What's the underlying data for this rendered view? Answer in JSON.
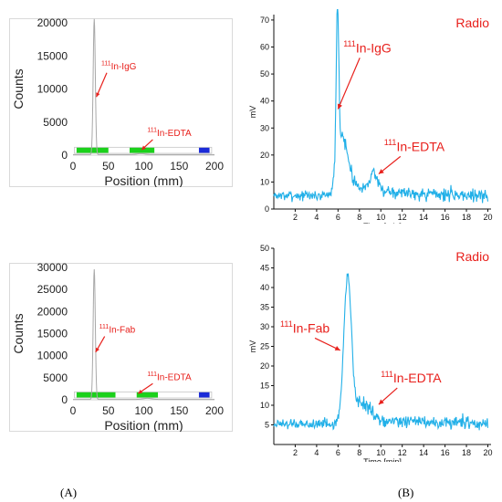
{
  "colors": {
    "red": "#e8201c",
    "hplc_trace": "#22b0e8",
    "tlc_trace": "#a8a8a8",
    "strip_green": "#1bd11b",
    "strip_blue": "#1b2bd8"
  },
  "panel_labels": {
    "a": "(A)",
    "b": "(B)"
  },
  "chart_data": [
    {
      "id": "A-top",
      "type": "line",
      "xlabel": "Position (mm)",
      "ylabel": "Counts",
      "xlim": [
        0,
        200
      ],
      "ylim": [
        0,
        20000
      ],
      "xticks": [
        "0",
        "50",
        "100",
        "150",
        "200"
      ],
      "yticks": [
        "0",
        "5000",
        "10000",
        "15000",
        "20000"
      ],
      "peaks": [
        {
          "center": 30,
          "height": 20500,
          "width": 1.5
        },
        {
          "center": 96,
          "height": 150,
          "width": 6
        }
      ],
      "baseline": 80,
      "strip_segments": [
        {
          "color": "green",
          "start": 5,
          "end": 50
        },
        {
          "color": "green",
          "start": 80,
          "end": 115
        },
        {
          "color": "blue",
          "start": 178,
          "end": 193
        }
      ],
      "annotations": [
        {
          "sup": "111",
          "text": "In-IgG",
          "label_x": 40,
          "label_y": 13000,
          "arrow_to_x": 33,
          "arrow_to_y": 8800
        },
        {
          "sup": "111",
          "text": "In-EDTA",
          "label_x": 105,
          "label_y": 2900,
          "arrow_to_x": 97,
          "arrow_to_y": 800
        }
      ]
    },
    {
      "id": "A-bottom",
      "type": "line",
      "xlabel": "Position (mm)",
      "ylabel": "Counts",
      "xlim": [
        0,
        200
      ],
      "ylim": [
        0,
        30000
      ],
      "xticks": [
        "0",
        "50",
        "100",
        "150",
        "200"
      ],
      "yticks": [
        "0",
        "5000",
        "10000",
        "15000",
        "20000",
        "25000",
        "30000"
      ],
      "peaks": [
        {
          "center": 30,
          "height": 29500,
          "width": 1.5
        },
        {
          "center": 105,
          "height": 250,
          "width": 6
        }
      ],
      "baseline": 80,
      "strip_segments": [
        {
          "color": "green",
          "start": 5,
          "end": 60
        },
        {
          "color": "green",
          "start": 90,
          "end": 120
        },
        {
          "color": "blue",
          "start": 178,
          "end": 193
        }
      ],
      "annotations": [
        {
          "sup": "111",
          "text": "In-Fab",
          "label_x": 37,
          "label_y": 15200,
          "arrow_to_x": 32,
          "arrow_to_y": 10800
        },
        {
          "sup": "111",
          "text": "In-EDTA",
          "label_x": 105,
          "label_y": 4500,
          "arrow_to_x": 92,
          "arrow_to_y": 1400
        }
      ]
    },
    {
      "id": "B-top",
      "type": "line",
      "title": "Radio",
      "xlabel": "Time [min]",
      "ylabel": "mV",
      "xlim": [
        0,
        20.3
      ],
      "ylim": [
        0,
        72
      ],
      "xticks": [
        "2",
        "4",
        "6",
        "8",
        "10",
        "12",
        "14",
        "16",
        "18",
        "20"
      ],
      "yticks": [
        "0",
        "10",
        "20",
        "30",
        "40",
        "50",
        "60",
        "70"
      ],
      "trace": {
        "start": 0,
        "end": 20,
        "step": 0.05,
        "baseline": 5,
        "noise": 1.5,
        "seed": 7,
        "rise": {
          "at": 5.8,
          "to": 12,
          "width": 0.15
        },
        "tail": {
          "level": 7,
          "decay": 3.5
        },
        "peaks": [
          {
            "center": 5.95,
            "height": 55,
            "width": 0.12
          },
          {
            "center": 6.4,
            "height": 16,
            "width": 0.5
          },
          {
            "center": 9.3,
            "height": 7,
            "width": 0.25
          }
        ]
      },
      "annotations": [
        {
          "sup": "111",
          "text": "In-IgG",
          "label_x": 6.5,
          "label_y": 58,
          "arrow_to_x": 6.0,
          "arrow_to_y": 37
        },
        {
          "sup": "111",
          "text": "In-EDTA",
          "label_x": 10.3,
          "label_y": 21.5,
          "arrow_to_x": 9.8,
          "arrow_to_y": 13
        }
      ]
    },
    {
      "id": "B-bottom",
      "type": "line",
      "title": "Radio",
      "xlabel": "Time [min]",
      "ylabel": "mV",
      "xlim": [
        0,
        20.3
      ],
      "ylim": [
        0,
        50
      ],
      "xticks": [
        "2",
        "4",
        "6",
        "8",
        "10",
        "12",
        "14",
        "16",
        "18",
        "20"
      ],
      "yticks": [
        "5",
        "10",
        "15",
        "20",
        "25",
        "30",
        "35",
        "40",
        "45",
        "50"
      ],
      "trace": {
        "start": 0,
        "end": 20,
        "step": 0.05,
        "baseline": 5.2,
        "noise": 1.1,
        "seed": 19,
        "rise": {
          "at": 6.5,
          "to": 5,
          "width": 0.3
        },
        "tail": {
          "level": 2.5,
          "decay": 4
        },
        "peaks": [
          {
            "center": 6.9,
            "height": 36,
            "width": 0.35
          },
          {
            "center": 8.3,
            "height": 4,
            "width": 0.6
          }
        ]
      },
      "annotations": [
        {
          "sup": "111",
          "text": "In-Fab",
          "label_x": 0.6,
          "label_y": 28.5,
          "arrow_to_x": 6.2,
          "arrow_to_y": 24
        },
        {
          "sup": "111",
          "text": "In-EDTA",
          "label_x": 10.0,
          "label_y": 15.8,
          "arrow_to_x": 9.8,
          "arrow_to_y": 10.2
        }
      ]
    }
  ]
}
